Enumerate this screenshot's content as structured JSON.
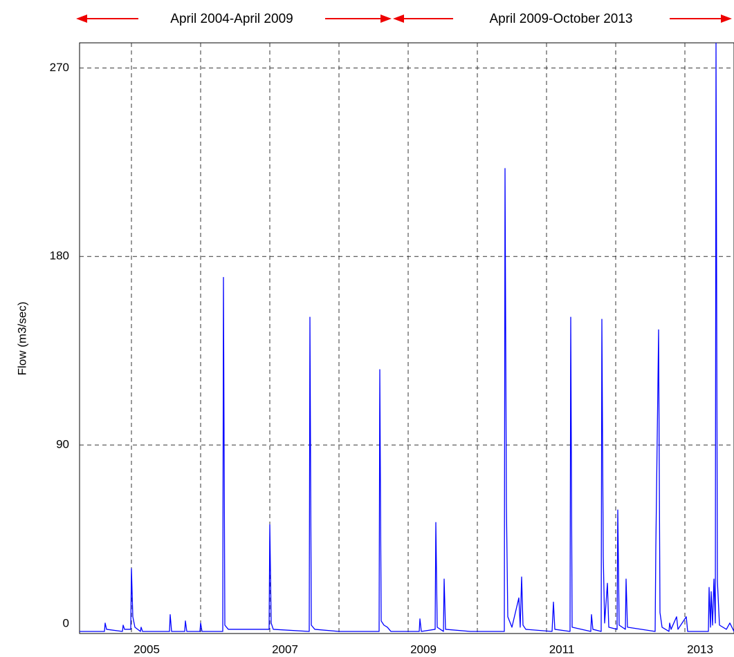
{
  "chart_data": {
    "type": "line",
    "y_label": "Flow (m3/sec)",
    "annotations": [
      "April 2004-April 2009",
      "April 2009-October 2013"
    ],
    "xlim": [
      2004.25,
      2013.71
    ],
    "xticks": [
      2005,
      2007,
      2009,
      2011,
      2013
    ],
    "xminor": [
      2006,
      2008,
      2010,
      2012
    ],
    "ylim": [
      0,
      282
    ],
    "yticks": [
      0,
      90,
      180,
      270
    ],
    "grid": true,
    "series": [
      {
        "name": "Flow",
        "color": "#0000ff",
        "x": [
          2004.25,
          2004.61,
          2004.62,
          2004.64,
          2004.87,
          2004.88,
          2004.9,
          2004.99,
          2005.0,
          2005.02,
          2005.05,
          2005.13,
          2005.14,
          2005.16,
          2005.55,
          2005.56,
          2005.58,
          2005.77,
          2005.78,
          2005.8,
          2005.99,
          2006.0,
          2006.02,
          2006.32,
          2006.33,
          2006.35,
          2006.4,
          2006.6,
          2006.99,
          2007.0,
          2007.02,
          2007.05,
          2007.57,
          2007.58,
          2007.6,
          2007.65,
          2008.0,
          2008.58,
          2008.59,
          2008.61,
          2008.65,
          2008.7,
          2008.75,
          2009.16,
          2009.17,
          2009.19,
          2009.39,
          2009.4,
          2009.42,
          2009.51,
          2009.52,
          2009.54,
          2009.9,
          2010.39,
          2010.4,
          2010.42,
          2010.44,
          2010.5,
          2010.6,
          2010.62,
          2010.64,
          2010.66,
          2010.7,
          2011.08,
          2011.1,
          2011.12,
          2011.34,
          2011.35,
          2011.37,
          2011.64,
          2011.65,
          2011.67,
          2011.79,
          2011.8,
          2011.82,
          2011.84,
          2011.88,
          2011.9,
          2012.02,
          2012.03,
          2012.05,
          2012.14,
          2012.15,
          2012.17,
          2012.57,
          2012.58,
          2012.62,
          2012.64,
          2012.67,
          2012.77,
          2012.78,
          2012.8,
          2012.88,
          2012.9,
          2013.0,
          2013.02,
          2013.04,
          2013.34,
          2013.35,
          2013.37,
          2013.38,
          2013.4,
          2013.42,
          2013.44,
          2013.45,
          2013.47,
          2013.5,
          2013.6,
          2013.65,
          2013.71
        ],
        "values": [
          1,
          1,
          5,
          2,
          1,
          4,
          2,
          2,
          31,
          8,
          3,
          1,
          3,
          1,
          1,
          9,
          1,
          1,
          6,
          1,
          1,
          5,
          1,
          1,
          170,
          4,
          2,
          2,
          2,
          52,
          5,
          2,
          1,
          151,
          4,
          2,
          1,
          1,
          126,
          6,
          4,
          3,
          1,
          1,
          7,
          1,
          2,
          53,
          3,
          1,
          26,
          2,
          1,
          1,
          222,
          62,
          8,
          3,
          17,
          3,
          27,
          4,
          2,
          1,
          15,
          2,
          1,
          151,
          3,
          1,
          9,
          2,
          1,
          150,
          37,
          5,
          24,
          3,
          2,
          59,
          4,
          2,
          26,
          3,
          1,
          41,
          145,
          10,
          3,
          1,
          5,
          2,
          8,
          2,
          7,
          8,
          1,
          1,
          22,
          3,
          20,
          4,
          26,
          5,
          282,
          25,
          4,
          2,
          5,
          1
        ]
      }
    ]
  }
}
